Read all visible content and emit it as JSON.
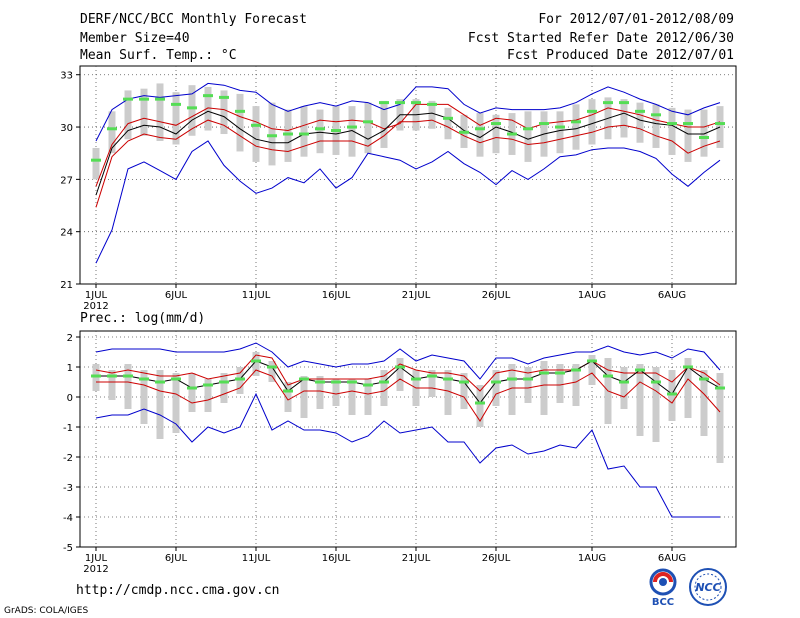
{
  "header": {
    "title": "DERF/NCC/BCC Monthly Forecast",
    "member": "Member Size=40",
    "var1": "Mean Surf. Temp.: °C",
    "period": "For 2012/07/01-2012/08/09",
    "started": "Fcst Started Refer Date 2012/06/30",
    "produced": "Fcst Produced Date 2012/07/01"
  },
  "footer": {
    "url": "http://cmdp.ncc.cma.gov.cn",
    "credit": "GrADS: COLA/IGES",
    "logo1": "BCC",
    "logo2": "NCC"
  },
  "colors": {
    "envelope": "#0000cc",
    "spread": "#cc0000",
    "mean": "#000000",
    "box": "#cccccc",
    "marker": "#55dd55"
  },
  "chart_data": [
    {
      "type": "line",
      "title": "Mean Surf. Temp.: °C",
      "x_days": 40,
      "xticks": [
        "1JUL",
        "6JUL",
        "11JUL",
        "16JUL",
        "21JUL",
        "26JUL",
        "1AUG",
        "6AUG"
      ],
      "xtick_days": [
        1,
        6,
        11,
        16,
        21,
        26,
        32,
        37
      ],
      "year_label": "2012",
      "ylim": [
        21,
        33.5
      ],
      "yticks": [
        21,
        24,
        27,
        30,
        33
      ],
      "series": [
        {
          "name": "max",
          "values": [
            29.2,
            31.0,
            31.6,
            31.8,
            31.7,
            31.8,
            31.9,
            32.5,
            32.4,
            32.1,
            32.0,
            31.3,
            30.9,
            31.2,
            31.4,
            31.2,
            31.5,
            31.4,
            31.0,
            31.3,
            32.3,
            32.3,
            32.2,
            31.3,
            30.8,
            31.1,
            31.0,
            31.0,
            31.0,
            31.1,
            31.4,
            31.9,
            32.3,
            32.0,
            31.6,
            31.3,
            30.9,
            30.7,
            31.1,
            31.4
          ]
        },
        {
          "name": "upper",
          "values": [
            26.6,
            29.0,
            30.2,
            30.5,
            30.3,
            30.1,
            30.6,
            31.1,
            31.0,
            30.6,
            30.3,
            29.9,
            29.8,
            30.1,
            30.4,
            30.3,
            30.4,
            30.3,
            29.9,
            30.2,
            31.3,
            31.3,
            31.3,
            30.7,
            30.1,
            30.5,
            30.4,
            29.9,
            30.2,
            30.3,
            30.4,
            30.7,
            31.1,
            30.9,
            30.7,
            30.4,
            30.2,
            30.0,
            30.0,
            30.3
          ]
        },
        {
          "name": "mean",
          "values": [
            26.1,
            28.8,
            29.8,
            30.1,
            30.0,
            29.6,
            30.4,
            30.9,
            30.6,
            29.9,
            29.3,
            29.1,
            29.1,
            29.6,
            29.7,
            29.6,
            29.8,
            29.3,
            29.8,
            30.7,
            30.7,
            30.8,
            30.5,
            29.8,
            29.4,
            30.0,
            29.7,
            29.3,
            29.6,
            29.8,
            29.9,
            30.2,
            30.5,
            30.8,
            30.4,
            30.2,
            30.1,
            29.6,
            29.6,
            30.0
          ]
        },
        {
          "name": "lower",
          "values": [
            25.4,
            28.3,
            29.2,
            29.6,
            29.4,
            29.3,
            29.9,
            30.4,
            30.1,
            29.5,
            28.9,
            28.7,
            28.6,
            28.9,
            29.2,
            29.2,
            29.2,
            28.9,
            29.5,
            30.3,
            30.3,
            30.4,
            30.0,
            29.5,
            29.1,
            29.4,
            29.3,
            29.0,
            29.1,
            29.3,
            29.5,
            29.7,
            30.0,
            30.1,
            29.9,
            29.5,
            29.2,
            28.5,
            28.9,
            29.2
          ]
        },
        {
          "name": "min",
          "values": [
            22.2,
            24.1,
            27.6,
            28.0,
            27.5,
            27.0,
            28.6,
            29.2,
            27.8,
            26.9,
            26.2,
            26.5,
            27.1,
            26.8,
            27.6,
            26.5,
            27.1,
            28.5,
            28.3,
            28.1,
            27.6,
            28.0,
            28.6,
            27.9,
            27.4,
            26.7,
            27.5,
            27.0,
            27.6,
            28.3,
            28.4,
            28.7,
            28.8,
            28.8,
            28.6,
            28.2,
            27.3,
            26.6,
            27.4,
            28.1
          ]
        }
      ],
      "box_low": [
        27.0,
        28.5,
        29.3,
        29.5,
        29.2,
        29.0,
        29.5,
        29.8,
        29.6,
        28.6,
        28.0,
        27.8,
        28.0,
        28.3,
        28.5,
        28.4,
        28.3,
        28.5,
        28.8,
        29.8,
        29.8,
        29.9,
        29.3,
        28.8,
        28.3,
        28.5,
        28.4,
        28.0,
        28.3,
        28.5,
        28.7,
        29.0,
        29.3,
        29.4,
        29.1,
        28.8,
        28.4,
        28.0,
        28.3,
        28.8
      ],
      "box_high": [
        28.8,
        30.9,
        32.1,
        32.2,
        32.5,
        32.0,
        32.4,
        32.3,
        32.1,
        31.9,
        31.2,
        31.4,
        31.0,
        31.2,
        31.0,
        31.2,
        31.2,
        31.4,
        31.5,
        31.6,
        31.6,
        31.5,
        31.1,
        30.7,
        30.8,
        30.7,
        30.8,
        30.9,
        30.9,
        30.9,
        31.3,
        31.6,
        31.7,
        31.6,
        31.4,
        31.3,
        31.1,
        31.0,
        31.0,
        31.2
      ],
      "marker": [
        28.1,
        29.9,
        31.6,
        31.6,
        31.6,
        31.3,
        31.1,
        31.8,
        31.7,
        30.9,
        30.1,
        29.5,
        29.6,
        29.6,
        29.9,
        29.8,
        30.0,
        30.3,
        31.4,
        31.4,
        31.4,
        31.3,
        30.5,
        29.7,
        29.9,
        30.2,
        29.6,
        29.9,
        30.2,
        30.0,
        30.3,
        30.9,
        31.4,
        31.4,
        30.9,
        30.7,
        30.2,
        30.2,
        29.4,
        30.2
      ]
    },
    {
      "type": "line",
      "title": "Prec.: log(mm/d)",
      "x_days": 40,
      "xticks": [
        "1JUL",
        "6JUL",
        "11JUL",
        "16JUL",
        "21JUL",
        "26JUL",
        "1AUG",
        "6AUG"
      ],
      "xtick_days": [
        1,
        6,
        11,
        16,
        21,
        26,
        32,
        37
      ],
      "year_label": "2012",
      "ylim": [
        -5,
        2.2
      ],
      "yticks": [
        -5,
        -4,
        -3,
        -2,
        -1,
        0,
        1,
        2
      ],
      "series": [
        {
          "name": "max",
          "values": [
            1.5,
            1.6,
            1.6,
            1.6,
            1.6,
            1.5,
            1.5,
            1.5,
            1.5,
            1.6,
            1.8,
            1.5,
            1.0,
            1.2,
            1.1,
            1.0,
            1.1,
            1.1,
            1.2,
            1.6,
            1.2,
            1.4,
            1.3,
            1.2,
            0.6,
            1.3,
            1.3,
            1.1,
            1.3,
            1.4,
            1.5,
            1.5,
            1.7,
            1.5,
            1.4,
            1.5,
            1.3,
            1.6,
            1.5,
            0.9
          ]
        },
        {
          "name": "upper",
          "values": [
            0.9,
            0.8,
            0.9,
            0.8,
            0.7,
            0.7,
            0.8,
            0.6,
            0.7,
            0.8,
            1.4,
            1.3,
            0.4,
            0.6,
            0.6,
            0.6,
            0.6,
            0.6,
            0.7,
            1.1,
            0.9,
            0.8,
            0.8,
            0.7,
            0.2,
            0.8,
            0.9,
            0.8,
            0.9,
            0.9,
            0.9,
            1.2,
            0.9,
            0.8,
            0.8,
            0.8,
            0.5,
            1.0,
            0.8,
            0.4
          ]
        },
        {
          "name": "mean",
          "values": [
            0.7,
            0.7,
            0.7,
            0.6,
            0.5,
            0.6,
            0.3,
            0.4,
            0.5,
            0.6,
            1.2,
            1.0,
            0.2,
            0.6,
            0.5,
            0.5,
            0.5,
            0.4,
            0.5,
            1.0,
            0.6,
            0.7,
            0.6,
            0.5,
            -0.2,
            0.5,
            0.6,
            0.6,
            0.8,
            0.8,
            0.9,
            1.2,
            0.7,
            0.5,
            0.9,
            0.5,
            0.1,
            1.0,
            0.6,
            0.3
          ]
        },
        {
          "name": "lower",
          "values": [
            0.5,
            0.5,
            0.5,
            0.4,
            0.2,
            0.1,
            -0.2,
            -0.1,
            0.1,
            0.3,
            0.9,
            0.7,
            -0.1,
            0.2,
            0.2,
            0.1,
            0.2,
            0.1,
            0.2,
            0.6,
            0.3,
            0.3,
            0.2,
            0.0,
            -0.8,
            0.1,
            0.3,
            0.3,
            0.4,
            0.4,
            0.5,
            0.8,
            0.2,
            0.0,
            0.5,
            0.2,
            -0.2,
            0.6,
            0.1,
            -0.5
          ]
        },
        {
          "name": "min",
          "values": [
            -0.7,
            -0.6,
            -0.6,
            -0.4,
            -0.6,
            -0.9,
            -1.5,
            -1.0,
            -1.2,
            -1.0,
            0.1,
            -1.1,
            -0.8,
            -1.1,
            -1.1,
            -1.2,
            -1.5,
            -1.3,
            -0.8,
            -1.2,
            -1.1,
            -1.0,
            -1.5,
            -1.5,
            -2.2,
            -1.7,
            -1.6,
            -1.9,
            -1.8,
            -1.6,
            -1.7,
            -1.1,
            -2.4,
            -2.3,
            -3.0,
            -3.0,
            -4.0,
            -4.0,
            -4.0,
            -4.0
          ]
        }
      ],
      "box_low": [
        0.2,
        -0.1,
        -0.4,
        -0.9,
        -1.4,
        -1.2,
        -0.5,
        -0.5,
        -0.2,
        0.1,
        0.7,
        0.5,
        -0.5,
        -0.7,
        -0.4,
        -0.3,
        -0.6,
        -0.6,
        -0.3,
        0.2,
        -0.3,
        0.0,
        -0.6,
        -0.4,
        -1.0,
        -0.3,
        -0.6,
        -0.2,
        -0.6,
        -0.2,
        -0.3,
        0.4,
        -0.9,
        -0.4,
        -1.3,
        -1.5,
        -0.8,
        -0.7,
        -1.3,
        -2.2
      ],
      "box_high": [
        1.1,
        0.9,
        1.1,
        0.9,
        0.9,
        0.8,
        0.8,
        0.6,
        0.8,
        1.0,
        1.5,
        1.2,
        0.5,
        0.7,
        0.7,
        0.6,
        0.6,
        0.6,
        0.9,
        1.3,
        0.9,
        0.9,
        0.9,
        0.8,
        0.4,
        0.9,
        1.1,
        1.0,
        1.2,
        1.1,
        1.1,
        1.4,
        1.3,
        1.0,
        1.1,
        1.0,
        0.9,
        1.3,
        0.9,
        0.8
      ]
    }
  ]
}
